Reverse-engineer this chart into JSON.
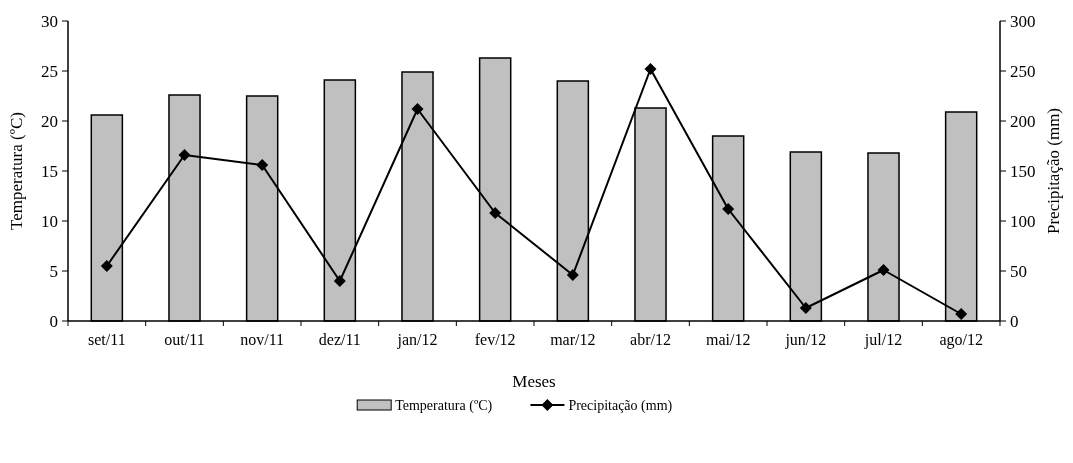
{
  "chart_data": {
    "type": "bar",
    "xlabel": "Meses",
    "ylabel": "Temperatura (ºC)",
    "y2label": "Precipitação (mm)",
    "categories": [
      "set/11",
      "out/11",
      "nov/11",
      "dez/11",
      "jan/12",
      "fev/12",
      "mar/12",
      "abr/12",
      "mai/12",
      "jun/12",
      "jul/12",
      "ago/12"
    ],
    "series": [
      {
        "name": "Temperatura (ºC)",
        "color": "#c0c0c0",
        "values": [
          20.6,
          22.6,
          22.5,
          24.1,
          24.9,
          26.3,
          24.0,
          21.3,
          18.5,
          16.9,
          16.8,
          20.9
        ]
      },
      {
        "name": "Precipitação (mm)",
        "type": "line",
        "axis": "y2",
        "color": "#000000",
        "marker": "diamond",
        "values": [
          55,
          166,
          156,
          40,
          212,
          108,
          46,
          252,
          112,
          13,
          51,
          7
        ]
      }
    ],
    "ylim": [
      0,
      30
    ],
    "yticks": [
      0,
      5,
      10,
      15,
      20,
      25,
      30
    ],
    "y2lim": [
      0,
      300
    ],
    "y2ticks": [
      0,
      50,
      100,
      150,
      200,
      250,
      300
    ],
    "grid": false,
    "legend": "bottom"
  }
}
